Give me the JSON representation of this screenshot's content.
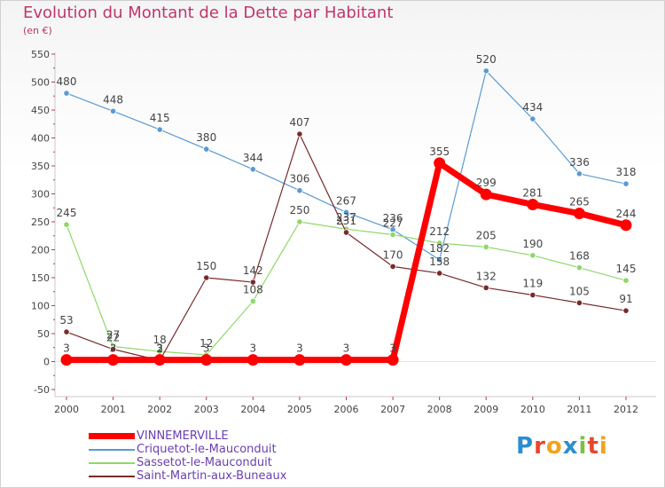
{
  "header": {
    "title": "Evolution du Montant de la Dette par Habitant",
    "subtitle": "(en €)"
  },
  "brand": {
    "text": "Proxiti",
    "colors": [
      "#2a8fd0",
      "#e8452c",
      "#f2a31b",
      "#2a8fd0",
      "#7ac143",
      "#e8452c",
      "#f2a31b"
    ]
  },
  "chart_data": {
    "type": "line",
    "x": [
      "2000",
      "2001",
      "2002",
      "2003",
      "2004",
      "2005",
      "2006",
      "2007",
      "2008",
      "2009",
      "2010",
      "2011",
      "2012"
    ],
    "ylim": [
      -50,
      550
    ],
    "yticks": [
      "-50",
      "0",
      "50",
      "100",
      "150",
      "200",
      "250",
      "300",
      "350",
      "400",
      "450",
      "500",
      "550"
    ],
    "grid": false,
    "legend_position": "bottom-left",
    "series": [
      {
        "name": "Criquetot-le-Mauconduit",
        "color": "#5a9ad4",
        "width": 1.2,
        "values": [
          480,
          448,
          415,
          380,
          344,
          306,
          267,
          236,
          182,
          520,
          434,
          336,
          318
        ],
        "labels": [
          "480",
          "448",
          "415",
          "380",
          "344",
          "306",
          "267",
          "236",
          "182",
          "520",
          "434",
          "336",
          "318"
        ]
      },
      {
        "name": "Sassetot-le-Mauconduit",
        "color": "#8fd86a",
        "width": 1.2,
        "values": [
          245,
          27,
          18,
          12,
          108,
          250,
          237,
          227,
          212,
          205,
          190,
          168,
          145
        ],
        "labels": [
          "245",
          "27",
          "18",
          "12",
          "108",
          "250",
          "237",
          "227",
          "212",
          "205",
          "190",
          "168",
          "145"
        ]
      },
      {
        "name": "Saint-Martin-aux-Buneaux",
        "color": "#7a2a2a",
        "width": 1.2,
        "values": [
          53,
          22,
          2,
          150,
          142,
          407,
          231,
          170,
          158,
          132,
          119,
          105,
          91
        ],
        "labels": [
          "53",
          "22",
          "2",
          "150",
          "142",
          "407",
          "231",
          "170",
          "158",
          "132",
          "119",
          "105",
          "91"
        ]
      },
      {
        "name": "VINNEMERVILLE",
        "color": "#ff0000",
        "width": 7,
        "values": [
          3,
          3,
          3,
          3,
          3,
          3,
          3,
          3,
          355,
          299,
          281,
          265,
          244
        ],
        "labels": [
          "3",
          "3",
          "3",
          "3",
          "3",
          "3",
          "3",
          "3",
          "355",
          "299",
          "281",
          "265",
          "244"
        ]
      }
    ],
    "legend_order": [
      "VINNEMERVILLE",
      "Criquetot-le-Mauconduit",
      "Sassetot-le-Mauconduit",
      "Saint-Martin-aux-Buneaux"
    ]
  }
}
